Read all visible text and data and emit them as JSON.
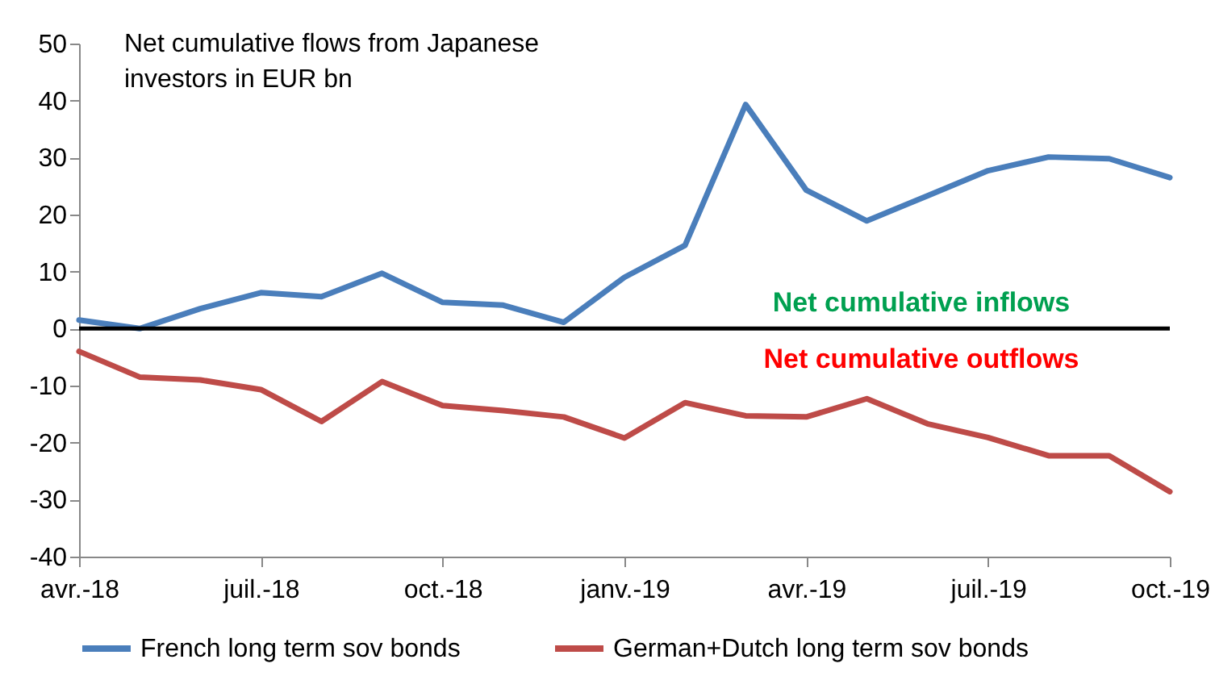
{
  "chart_data": {
    "type": "line",
    "title": "Net cumulative flows from Japanese investors in EUR bn",
    "categories": [
      "avr.-18",
      null,
      null,
      "juil.-18",
      null,
      null,
      "oct.-18",
      null,
      null,
      "janv.-19",
      null,
      null,
      "avr.-19",
      null,
      null,
      "juil.-19",
      null,
      null,
      "oct.-19"
    ],
    "series": [
      {
        "name": "French long term sov bonds",
        "color": "#4a7ebb",
        "values": [
          1.5,
          0,
          3.5,
          6.3,
          5.6,
          9.7,
          4.6,
          4.1,
          1.1,
          9,
          14.6,
          39.3,
          24.3,
          18.9,
          23.3,
          27.7,
          30.1,
          29.8,
          26.5
        ]
      },
      {
        "name": "German+Dutch long term sov bonds",
        "color": "#be4b48",
        "values": [
          -4,
          -8.5,
          -9,
          -10.7,
          -16.3,
          -9.3,
          -13.5,
          -14.4,
          -15.5,
          -19.2,
          -13,
          -15.3,
          -15.5,
          -12.3,
          -16.7,
          -19.1,
          -22.3,
          -22.3,
          -28.6
        ]
      }
    ],
    "ylim": [
      -40,
      50
    ],
    "yticks": [
      -40,
      -30,
      -20,
      -10,
      0,
      10,
      20,
      30,
      40,
      50
    ],
    "grid": false,
    "legend": "bottom",
    "ref_lines": [
      {
        "axis": "y",
        "value": 0,
        "color": "#000000"
      }
    ],
    "annotations": [
      "Net cumulative inflows",
      "Net cumulative outflows"
    ]
  }
}
